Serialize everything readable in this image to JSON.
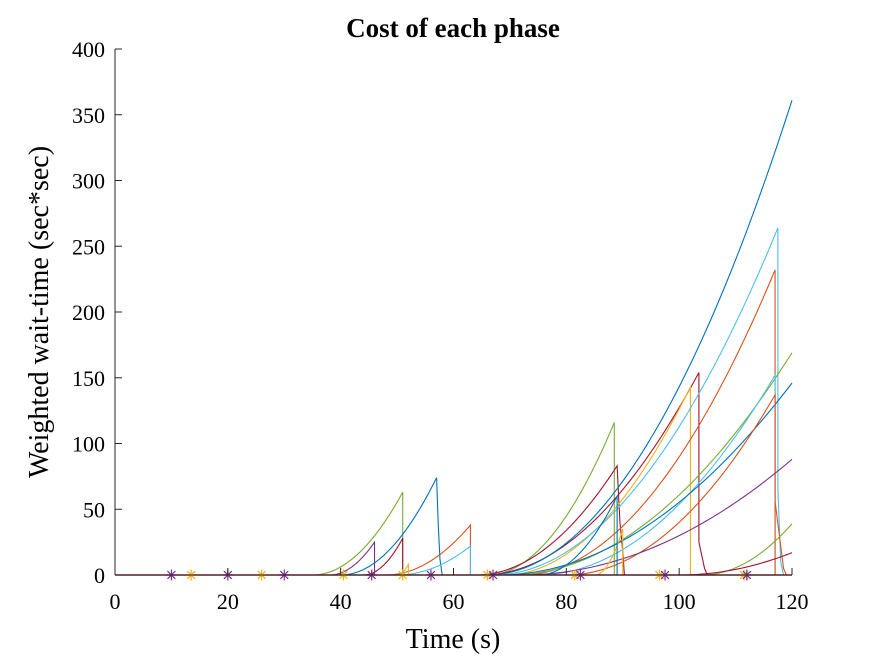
{
  "chart_data": {
    "type": "line",
    "title": "Cost of each phase",
    "xlabel": "Time (s)",
    "ylabel": "Weighted wait-time (sec*sec)",
    "xlim": [
      0,
      120
    ],
    "ylim": [
      0,
      400
    ],
    "xticks": [
      0,
      20,
      40,
      60,
      80,
      100,
      120
    ],
    "yticks": [
      0,
      50,
      100,
      150,
      200,
      250,
      300,
      350,
      400
    ],
    "grid": false,
    "legend": "none",
    "series": [
      {
        "color": "#77AC30",
        "points": [
          [
            35,
            0
          ],
          [
            51,
            63
          ],
          [
            51,
            0
          ]
        ]
      },
      {
        "color": "#0072BD",
        "points": [
          [
            40,
            0
          ],
          [
            57,
            74
          ],
          [
            57.3,
            38
          ],
          [
            57.6,
            12
          ],
          [
            58,
            0
          ]
        ]
      },
      {
        "color": "#D95319",
        "points": [
          [
            48,
            0
          ],
          [
            63,
            38
          ],
          [
            63,
            0
          ]
        ]
      },
      {
        "color": "#4DBEEE",
        "points": [
          [
            50,
            0
          ],
          [
            63,
            22
          ],
          [
            63,
            0
          ]
        ]
      },
      {
        "color": "#7E2F8E",
        "points": [
          [
            38,
            0
          ],
          [
            46,
            25
          ],
          [
            46,
            0
          ]
        ]
      },
      {
        "color": "#A2142F",
        "points": [
          [
            44,
            0
          ],
          [
            51,
            28
          ],
          [
            51,
            0
          ]
        ]
      },
      {
        "color": "#EDB120",
        "points": [
          [
            50,
            0
          ],
          [
            52,
            8
          ],
          [
            52,
            0
          ]
        ]
      },
      {
        "color": "#77AC30",
        "points": [
          [
            66,
            0
          ],
          [
            88.5,
            116
          ],
          [
            88.5,
            0
          ]
        ]
      },
      {
        "color": "#A2142F",
        "points": [
          [
            64,
            0
          ],
          [
            89,
            83
          ],
          [
            89.5,
            40
          ],
          [
            90,
            18
          ],
          [
            90.3,
            0
          ]
        ]
      },
      {
        "color": "#A2142F",
        "points": [
          [
            65,
            0
          ],
          [
            103.5,
            154
          ],
          [
            103.5,
            25
          ],
          [
            104.5,
            5
          ],
          [
            105,
            0
          ]
        ]
      },
      {
        "color": "#EDB120",
        "points": [
          [
            69,
            0
          ],
          [
            102,
            143
          ],
          [
            102,
            0
          ]
        ]
      },
      {
        "color": "#0072BD",
        "points": [
          [
            66,
            0
          ],
          [
            120,
            361
          ]
        ]
      },
      {
        "color": "#4DBEEE",
        "points": [
          [
            67,
            0
          ],
          [
            117.5,
            264
          ],
          [
            117.5,
            65
          ],
          [
            118,
            10
          ],
          [
            118.5,
            0
          ]
        ]
      },
      {
        "color": "#D95319",
        "points": [
          [
            72,
            0
          ],
          [
            117,
            232
          ],
          [
            117,
            56
          ],
          [
            118.5,
            5
          ],
          [
            119,
            0
          ]
        ]
      },
      {
        "color": "#77AC30",
        "points": [
          [
            70,
            0
          ],
          [
            120,
            169
          ]
        ]
      },
      {
        "color": "#4DBEEE",
        "points": [
          [
            75,
            0
          ],
          [
            117,
            152
          ],
          [
            117,
            0
          ]
        ]
      },
      {
        "color": "#0072BD",
        "points": [
          [
            68,
            0
          ],
          [
            120,
            146
          ]
        ]
      },
      {
        "color": "#D95319",
        "points": [
          [
            80,
            0
          ],
          [
            117,
            137
          ],
          [
            117,
            0
          ]
        ]
      },
      {
        "color": "#7E2F8E",
        "points": [
          [
            72,
            0
          ],
          [
            120,
            88
          ]
        ]
      },
      {
        "color": "#77AC30",
        "points": [
          [
            104,
            0
          ],
          [
            120,
            39
          ]
        ]
      },
      {
        "color": "#A2142F",
        "points": [
          [
            100,
            0
          ],
          [
            120,
            17
          ]
        ]
      },
      {
        "color": "#EDB120",
        "points": [
          [
            85,
            0
          ],
          [
            90,
            35
          ],
          [
            90,
            0
          ]
        ]
      },
      {
        "color": "#0072BD",
        "points": [
          [
            75,
            0
          ],
          [
            89,
            60
          ],
          [
            89,
            0
          ]
        ]
      }
    ],
    "markers": [
      {
        "x": 10,
        "color": "#7E2F8E"
      },
      {
        "x": 13.5,
        "color": "#EDB120"
      },
      {
        "x": 20,
        "color": "#7E2F8E"
      },
      {
        "x": 26,
        "color": "#EDB120"
      },
      {
        "x": 30,
        "color": "#7E2F8E"
      },
      {
        "x": 40.5,
        "color": "#EDB120"
      },
      {
        "x": 45.5,
        "color": "#7E2F8E"
      },
      {
        "x": 51,
        "color": "#EDB120"
      },
      {
        "x": 56,
        "color": "#7E2F8E"
      },
      {
        "x": 66,
        "color": "#EDB120"
      },
      {
        "x": 67,
        "color": "#7E2F8E"
      },
      {
        "x": 81.5,
        "color": "#EDB120"
      },
      {
        "x": 82.5,
        "color": "#7E2F8E"
      },
      {
        "x": 96.5,
        "color": "#EDB120"
      },
      {
        "x": 97.5,
        "color": "#7E2F8E"
      },
      {
        "x": 111.5,
        "color": "#EDB120"
      },
      {
        "x": 112,
        "color": "#7E2F8E"
      }
    ]
  }
}
